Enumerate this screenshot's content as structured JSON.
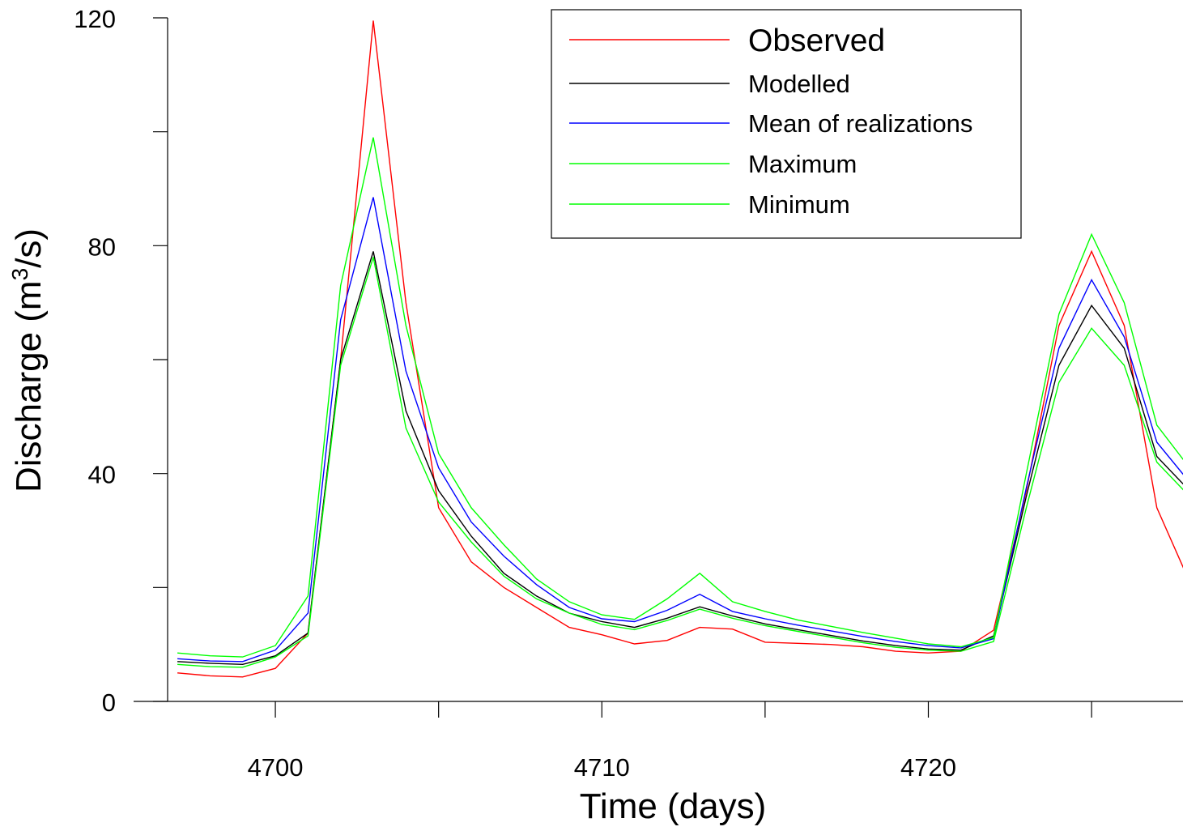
{
  "chart_data": {
    "type": "line",
    "xlabel": "Time (days)",
    "ylabel": {
      "prefix": "Discharge (m",
      "sup": "3",
      "suffix": "/s)"
    },
    "xlim": [
      4696.7,
      4727.8
    ],
    "ylim": [
      0,
      120
    ],
    "x_ticks": [
      4695,
      4700,
      4705,
      4710,
      4715,
      4720,
      4725
    ],
    "x_tick_labels": [
      {
        "value": 4700,
        "label": "4700"
      },
      {
        "value": 4710,
        "label": "4710"
      },
      {
        "value": 4720,
        "label": "4720"
      }
    ],
    "y_ticks": [
      0,
      20,
      40,
      60,
      80,
      100,
      120
    ],
    "y_tick_labels": [
      {
        "value": 0,
        "label": "0"
      },
      {
        "value": 40,
        "label": "40"
      },
      {
        "value": 80,
        "label": "80"
      },
      {
        "value": 120,
        "label": "120"
      }
    ],
    "grid": false,
    "legend_position": "top-right",
    "x": [
      4697,
      4698,
      4699,
      4700,
      4701,
      4702,
      4703,
      4704,
      4705,
      4706,
      4707,
      4708,
      4709,
      4710,
      4711,
      4712,
      4713,
      4714,
      4715,
      4716,
      4717,
      4718,
      4719,
      4720,
      4721,
      4722,
      4723,
      4724,
      4725,
      4726,
      4727,
      4728
    ],
    "series": [
      {
        "name": "Observed",
        "color": "#ff0000",
        "values": [
          5,
          4.5,
          4.3,
          5.8,
          12,
          60,
          119.5,
          70,
          34,
          24.5,
          20,
          16.5,
          13,
          11.7,
          10.1,
          10.7,
          13,
          12.7,
          10.4,
          10.2,
          10,
          9.6,
          8.8,
          8.5,
          8.8,
          12.5,
          37,
          66,
          79,
          66,
          34,
          21
        ]
      },
      {
        "name": "Modelled",
        "color": "#000000",
        "values": [
          7,
          6.7,
          6.5,
          8,
          12,
          60,
          79,
          51,
          37,
          29,
          22.5,
          18.5,
          15.5,
          14,
          13,
          14.6,
          16.6,
          15,
          13.6,
          12.6,
          11.6,
          10.6,
          9.8,
          9.2,
          9,
          11.5,
          36,
          59,
          69.5,
          62,
          43,
          37
        ]
      },
      {
        "name": "Mean of realizations",
        "color": "#0000ff",
        "values": [
          7.5,
          7.1,
          7,
          9,
          15.5,
          67,
          88.5,
          58,
          41,
          31.5,
          25.5,
          20.5,
          16.5,
          14.5,
          14,
          16,
          18.8,
          15.8,
          14.5,
          13.4,
          12.4,
          11.4,
          10.5,
          9.8,
          9.4,
          11,
          37.5,
          62,
          74,
          64,
          45.5,
          38.5
        ]
      },
      {
        "name": "Maximum",
        "color": "#00ff00",
        "values": [
          8.5,
          8,
          7.8,
          9.8,
          18.5,
          73,
          99,
          66,
          43.5,
          34,
          27.5,
          21.5,
          17.5,
          15.2,
          14.4,
          18,
          22.5,
          17.5,
          15.8,
          14.3,
          13.2,
          12.1,
          11.1,
          10.1,
          9.6,
          11.2,
          40,
          68,
          82,
          70,
          48.5,
          41
        ]
      },
      {
        "name": "Minimum",
        "color": "#00ff00",
        "values": [
          6.5,
          6.1,
          6,
          7.8,
          11.5,
          59,
          78,
          48,
          35,
          28,
          22,
          18,
          15.5,
          13.5,
          12.6,
          14.2,
          16.2,
          14.6,
          13.3,
          12.3,
          11.3,
          10.3,
          9.5,
          9,
          8.8,
          10.5,
          34,
          56,
          65.5,
          59,
          42,
          36
        ]
      }
    ]
  }
}
